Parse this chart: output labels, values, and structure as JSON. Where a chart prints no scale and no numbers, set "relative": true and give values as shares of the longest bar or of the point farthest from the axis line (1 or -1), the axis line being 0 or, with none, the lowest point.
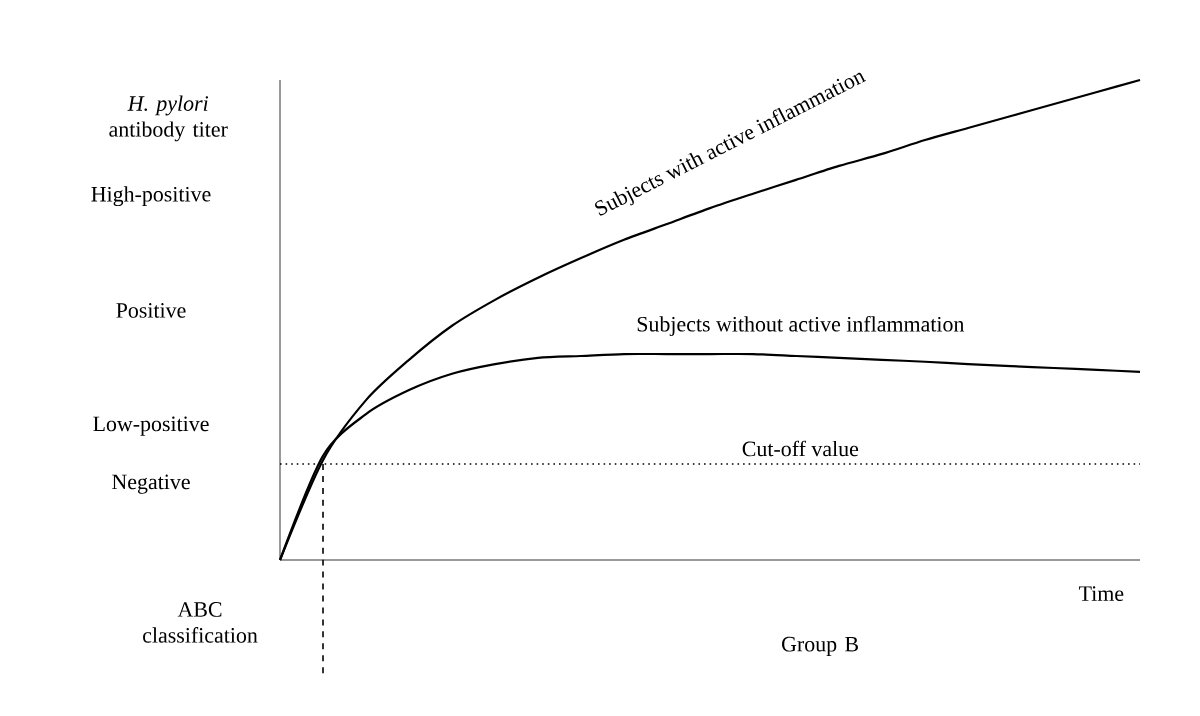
{
  "chart_data": {
    "type": "line",
    "relative": true,
    "ylabel": "*H. pylori* antibody titer",
    "xlabel": "Time",
    "categories": [
      null,
      null,
      null,
      null,
      null,
      null,
      null,
      null,
      null,
      null,
      null,
      null,
      null,
      null,
      null,
      null,
      null,
      null,
      null,
      null,
      null
    ],
    "series": [
      {
        "name": "Subjects with active inflammation",
        "color": "#000000",
        "values": [
          0,
          0.208,
          0.333,
          0.417,
          0.488,
          0.542,
          0.588,
          0.629,
          0.667,
          0.7,
          0.733,
          0.763,
          0.792,
          0.821,
          0.846,
          0.875,
          0.9,
          0.925,
          0.95,
          0.975,
          1
        ]
      },
      {
        "name": "Subjects without active inflammation",
        "color": "#000000",
        "values": [
          0,
          0.217,
          0.304,
          0.354,
          0.388,
          0.408,
          0.421,
          0.425,
          0.429,
          0.429,
          0.429,
          0.429,
          0.425,
          0.421,
          0.417,
          0.413,
          0.408,
          0.404,
          0.4,
          0.396,
          0.392
        ]
      }
    ],
    "ref_lines": [
      {
        "axis": "y",
        "value": 0.2,
        "label": "Cut-off value",
        "line_style": "dotted"
      }
    ],
    "annotations": [
      "High-positive",
      "Positive",
      "Low-positive",
      "Negative",
      "ABC classification",
      "Group B"
    ],
    "marker": "none",
    "line_style": "solid"
  }
}
